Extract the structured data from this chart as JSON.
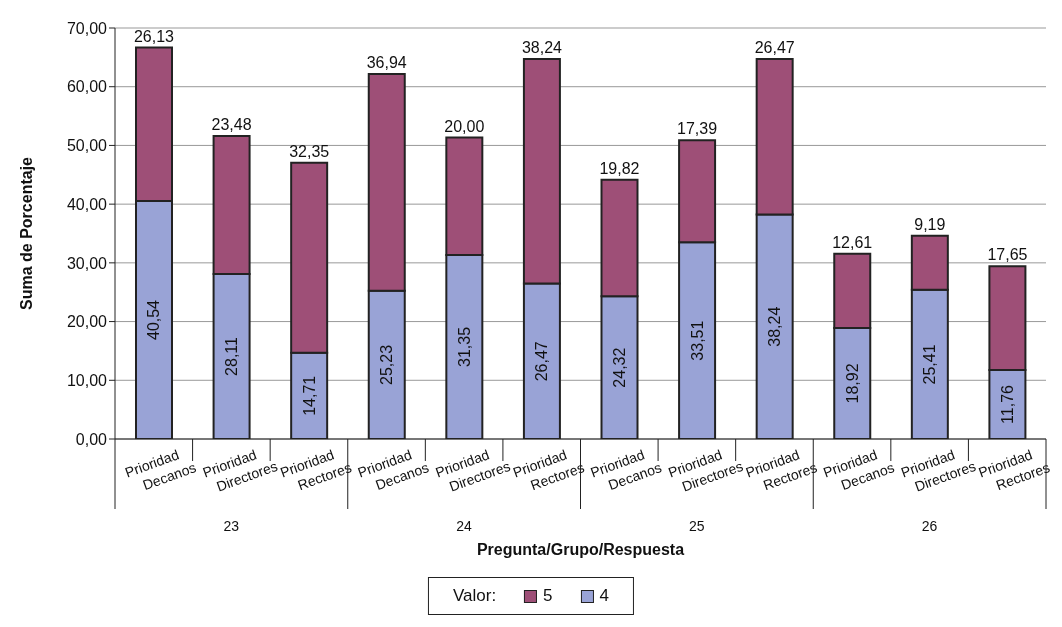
{
  "chart_data": {
    "type": "bar",
    "stacked": true,
    "xlabel": "Pregunta/Grupo/Respuesta",
    "ylabel": "Suma de Porcentaje",
    "legend_title": "Valor:",
    "categories": [
      "Prioridad Decanos",
      "Prioridad Directores",
      "Prioridad Rectores",
      "Prioridad Decanos",
      "Prioridad Directores",
      "Prioridad Rectores",
      "Prioridad Decanos",
      "Prioridad Directores",
      "Prioridad Rectores",
      "Prioridad Decanos",
      "Prioridad Directores",
      "Prioridad Rectores"
    ],
    "annotations": [
      "23",
      "24",
      "25",
      "26"
    ],
    "series": [
      {
        "name": "4",
        "color": "#99a3d6",
        "values": [
          40.54,
          28.11,
          14.71,
          25.23,
          31.35,
          26.47,
          24.32,
          33.51,
          38.24,
          18.92,
          25.41,
          11.76
        ],
        "value_labels": [
          "40,54",
          "28,11",
          "14,71",
          "25,23",
          "31,35",
          "26,47",
          "24,32",
          "33,51",
          "38,24",
          "18,92",
          "25,41",
          "11,76"
        ]
      },
      {
        "name": "5",
        "color": "#9e4f77",
        "values": [
          26.13,
          23.48,
          32.35,
          36.94,
          20.0,
          38.24,
          19.82,
          17.39,
          26.47,
          12.61,
          9.19,
          17.65
        ],
        "value_labels": [
          "26,13",
          "23,48",
          "32,35",
          "36,94",
          "20,00",
          "38,24",
          "19,82",
          "17,39",
          "26,47",
          "12,61",
          "9,19",
          "17,65"
        ]
      }
    ],
    "ylim": [
      0,
      70
    ],
    "yticks": [
      {
        "value": 0,
        "label": "0,00"
      },
      {
        "value": 10,
        "label": "10,00"
      },
      {
        "value": 20,
        "label": "20,00"
      },
      {
        "value": 30,
        "label": "30,00"
      },
      {
        "value": 40,
        "label": "40,00"
      },
      {
        "value": 50,
        "label": "50,00"
      },
      {
        "value": 60,
        "label": "60,00"
      },
      {
        "value": 70,
        "label": "70,00"
      }
    ],
    "grid": "y",
    "legend": "bottom"
  }
}
